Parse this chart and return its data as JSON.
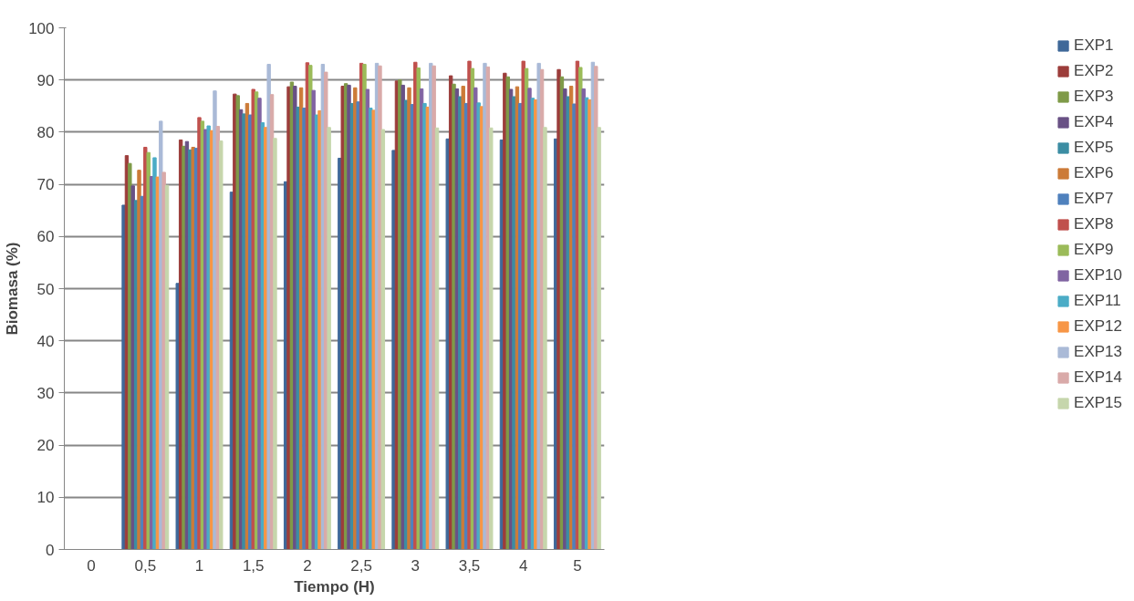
{
  "chart_data": {
    "type": "bar",
    "xlabel": "Tiempo (H)",
    "ylabel": "Biomasa (%)",
    "categories": [
      "0",
      "0,5",
      "1",
      "1,5",
      "2",
      "2,5",
      "3",
      "3,5",
      "4",
      "5"
    ],
    "ylim": [
      0,
      100
    ],
    "yticks": [
      0,
      10,
      20,
      30,
      40,
      50,
      60,
      70,
      80,
      90,
      100
    ],
    "grid": "y",
    "legend": "right",
    "series": [
      {
        "name": "EXP1",
        "color": "#3f6899",
        "values": [
          null,
          66,
          51,
          68.5,
          70.5,
          75,
          76.5,
          78.7,
          78.5,
          78.7
        ]
      },
      {
        "name": "EXP2",
        "color": "#9c3d3b",
        "values": [
          null,
          75.5,
          78.5,
          87.3,
          88.7,
          88.8,
          89.8,
          90.8,
          91.3,
          92
        ]
      },
      {
        "name": "EXP3",
        "color": "#7f9a48",
        "values": [
          null,
          74,
          77.3,
          87,
          89.6,
          89.3,
          90,
          89.2,
          90.6,
          90.6
        ]
      },
      {
        "name": "EXP4",
        "color": "#695185",
        "values": [
          null,
          69.7,
          78.2,
          84.3,
          88.8,
          89,
          89,
          88.3,
          88.2,
          88.3
        ]
      },
      {
        "name": "EXP5",
        "color": "#3c8da3",
        "values": [
          null,
          66.9,
          76.6,
          83.5,
          84.8,
          85.5,
          86.1,
          86.8,
          86.8,
          86.8
        ]
      },
      {
        "name": "EXP6",
        "color": "#cc7b38",
        "values": [
          null,
          72.7,
          77.1,
          85.5,
          88.5,
          88.5,
          88.5,
          88.8,
          88.7,
          88.8
        ]
      },
      {
        "name": "EXP7",
        "color": "#4f81bd",
        "values": [
          null,
          67.7,
          76.9,
          83.3,
          84.6,
          85.8,
          85.3,
          85.5,
          85.5,
          85.4
        ]
      },
      {
        "name": "EXP8",
        "color": "#c0504d",
        "values": [
          null,
          77.1,
          82.8,
          88.2,
          93.3,
          93.2,
          93.4,
          93.6,
          93.6,
          93.6
        ]
      },
      {
        "name": "EXP9",
        "color": "#9bbb59",
        "values": [
          null,
          76.1,
          82.1,
          87.7,
          92.8,
          93,
          92.3,
          92.2,
          92.2,
          92.4
        ]
      },
      {
        "name": "EXP10",
        "color": "#8064a2",
        "values": [
          null,
          71.5,
          80.5,
          86.5,
          88,
          88.2,
          88.3,
          88.5,
          88.4,
          88.3
        ]
      },
      {
        "name": "EXP11",
        "color": "#4bacc6",
        "values": [
          null,
          75.1,
          81.2,
          81.8,
          83.3,
          84.6,
          85.5,
          85.6,
          86.5,
          86.6
        ]
      },
      {
        "name": "EXP12",
        "color": "#f79646",
        "values": [
          null,
          71.4,
          80.3,
          80.9,
          84.1,
          84.2,
          84.8,
          84.9,
          86.2,
          86.2
        ]
      },
      {
        "name": "EXP13",
        "color": "#aabad7",
        "values": [
          null,
          82.1,
          87.9,
          93,
          93,
          93.2,
          93.2,
          93.2,
          93.2,
          93.4
        ]
      },
      {
        "name": "EXP14",
        "color": "#d9aaa9",
        "values": [
          null,
          72.3,
          81.1,
          87.2,
          91.5,
          92.7,
          92.7,
          92.5,
          92,
          92.6
        ]
      },
      {
        "name": "EXP15",
        "color": "#c6d6ac",
        "values": [
          null,
          69.8,
          78.3,
          78.8,
          80.9,
          80.5,
          80.8,
          80.8,
          80.9,
          80.9
        ]
      }
    ]
  }
}
